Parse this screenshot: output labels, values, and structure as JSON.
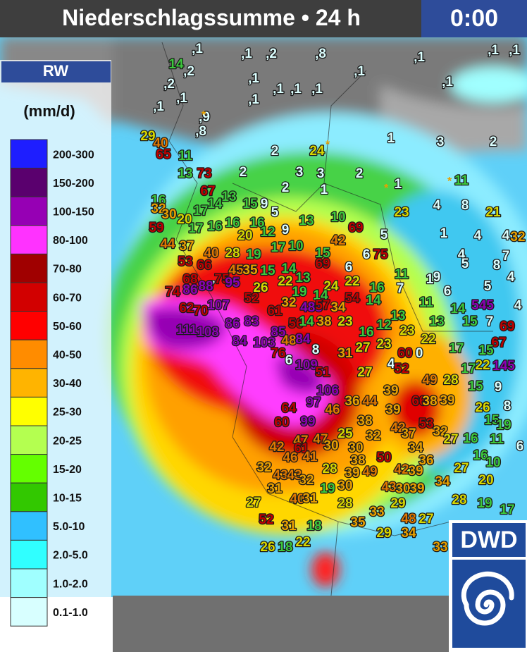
{
  "header": {
    "title": "Niederschlagssumme • 24 h",
    "time": "0:00"
  },
  "legend": {
    "title": "RW",
    "unit": "(mm/d)",
    "classes": [
      {
        "label": "200-300",
        "color": "#1e1eff"
      },
      {
        "label": "150-200",
        "color": "#5a006e"
      },
      {
        "label": "100-150",
        "color": "#9600b4"
      },
      {
        "label": "80-100",
        "color": "#ff32ff"
      },
      {
        "label": "70-80",
        "color": "#a00000"
      },
      {
        "label": "60-70",
        "color": "#d20000"
      },
      {
        "label": "50-60",
        "color": "#ff0000"
      },
      {
        "label": "40-50",
        "color": "#ff8c00"
      },
      {
        "label": "30-40",
        "color": "#ffb400"
      },
      {
        "label": "25-30",
        "color": "#ffff00"
      },
      {
        "label": "20-25",
        "color": "#b4ff50"
      },
      {
        "label": "15-20",
        "color": "#64ff00"
      },
      {
        "label": "10-15",
        "color": "#32c800"
      },
      {
        "label": "5.0-10",
        "color": "#30c0ff"
      },
      {
        "label": "2.0-5.0",
        "color": "#30ffff"
      },
      {
        "label": "1.0-2.0",
        "color": "#a0ffff"
      },
      {
        "label": "0.1-1.0",
        "color": "#d8ffff"
      }
    ]
  },
  "map": {
    "station_values": [
      ",1",
      ",2",
      "14",
      ",2",
      ",1",
      ",1",
      ",1",
      ",2",
      ",8",
      ",1",
      ",1",
      ",1",
      ",1",
      ",1",
      ",1",
      ",1",
      ",1",
      ",1",
      ",1",
      ",9",
      ",8",
      "29",
      "40",
      "65",
      "11",
      "2",
      "24",
      "1",
      "3",
      "2",
      "13",
      "73",
      "2",
      "3",
      "3",
      "2",
      "1",
      "11",
      "16",
      "67",
      "13",
      "15",
      "9",
      "2",
      "1",
      "32",
      "30",
      "20",
      "17",
      "14",
      "16",
      "16",
      "5",
      "10",
      "23",
      "4",
      "8",
      "21",
      "59",
      "17",
      "16",
      "20",
      "12",
      "9",
      "13",
      "69",
      "5",
      "1",
      "4",
      "4",
      "32",
      "44",
      "37",
      "40",
      "28",
      "19",
      "17",
      "10",
      "15",
      "42",
      "6",
      "75",
      "4",
      "7",
      "53",
      "66",
      "45",
      "35",
      "15",
      "14",
      "13",
      "69",
      "6",
      "11",
      "1",
      "5",
      "8",
      "68",
      "7",
      "75",
      "95",
      "26",
      "22",
      "24",
      "22",
      "16",
      "7",
      "9",
      "6",
      "5",
      "4",
      "86",
      "88",
      "74",
      "52",
      "19",
      "14",
      "54",
      "14",
      "11",
      "14",
      "545",
      "4",
      "62",
      "70",
      "107",
      "61",
      "32",
      "485",
      "57",
      "34",
      "13",
      "13",
      "15",
      "7",
      "69",
      "111",
      "108",
      "86",
      "83",
      "85",
      "56",
      "14",
      "38",
      "23",
      "16",
      "12",
      "23",
      "22",
      "67",
      "84",
      "103",
      "48",
      "84",
      "31",
      "27",
      "23",
      "60",
      "0",
      "17",
      "15",
      "76",
      "6",
      "8",
      "109",
      "51",
      "27",
      "4",
      "52",
      "49",
      "28",
      "17",
      "22",
      "145",
      "15",
      "9",
      "106",
      "39",
      "36",
      "44",
      "39",
      "66",
      "38",
      "39",
      "64",
      "97",
      "46",
      "26",
      "8",
      "60",
      "99",
      "38",
      "42",
      "37",
      "53",
      "32",
      "15",
      "19",
      "47",
      "47",
      "25",
      "32",
      "27",
      "16",
      "11",
      "6",
      "42",
      "61",
      "30",
      "30",
      "50",
      "34",
      "36",
      "16",
      "46",
      "41",
      "38",
      "10",
      "32",
      "43",
      "43",
      "32",
      "28",
      "39",
      "49",
      "42",
      "39",
      "27",
      "20",
      "31",
      "19",
      "30",
      "43",
      "30",
      "39",
      "34",
      "27",
      "40",
      "31",
      "28",
      "29",
      "28",
      "19",
      "17",
      "33",
      "52",
      "31",
      "18",
      "35",
      "48",
      "27",
      "29",
      "34",
      "26",
      "18",
      "22",
      "33"
    ]
  },
  "logo": "DWD"
}
